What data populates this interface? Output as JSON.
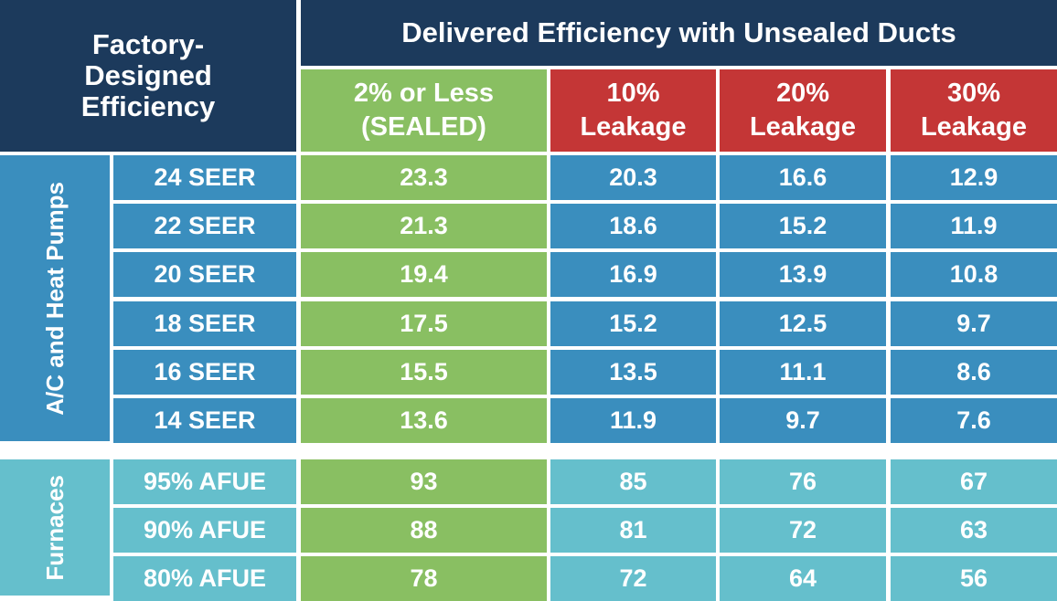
{
  "corner_header": [
    "Factory-",
    "Designed",
    "Efficiency"
  ],
  "top_header": "Delivered Efficiency with Unsealed Ducts",
  "columns": [
    {
      "line1": "2% or Less",
      "line2": "(SEALED)",
      "color": "#89bf62"
    },
    {
      "line1": "10%",
      "line2": "Leakage",
      "color": "#c43636"
    },
    {
      "line1": "20%",
      "line2": "Leakage",
      "color": "#c43636"
    },
    {
      "line1": "30%",
      "line2": "Leakage",
      "color": "#c43636"
    }
  ],
  "groups": [
    {
      "label": "A/C and Heat Pumps",
      "color": "#3a8ebe",
      "rows": [
        {
          "label": "24 SEER",
          "values": [
            "23.3",
            "20.3",
            "16.6",
            "12.9"
          ]
        },
        {
          "label": "22 SEER",
          "values": [
            "21.3",
            "18.6",
            "15.2",
            "11.9"
          ]
        },
        {
          "label": "20 SEER",
          "values": [
            "19.4",
            "16.9",
            "13.9",
            "10.8"
          ]
        },
        {
          "label": "18 SEER",
          "values": [
            "17.5",
            "15.2",
            "12.5",
            "9.7"
          ]
        },
        {
          "label": "16 SEER",
          "values": [
            "15.5",
            "13.5",
            "11.1",
            "8.6"
          ]
        },
        {
          "label": "14 SEER",
          "values": [
            "13.6",
            "11.9",
            "9.7",
            "7.6"
          ]
        }
      ]
    },
    {
      "label": "Furnaces",
      "color": "#65bfcc",
      "rows": [
        {
          "label": "95% AFUE",
          "values": [
            "93",
            "85",
            "76",
            "67"
          ]
        },
        {
          "label": "90% AFUE",
          "values": [
            "88",
            "81",
            "72",
            "63"
          ]
        },
        {
          "label": "80% AFUE",
          "values": [
            "78",
            "72",
            "64",
            "56"
          ]
        }
      ]
    }
  ],
  "colors": {
    "navy": "#1c3a5c",
    "green": "#89bf62",
    "red": "#c43636",
    "blue": "#3a8ebe",
    "teal": "#65bfcc"
  }
}
